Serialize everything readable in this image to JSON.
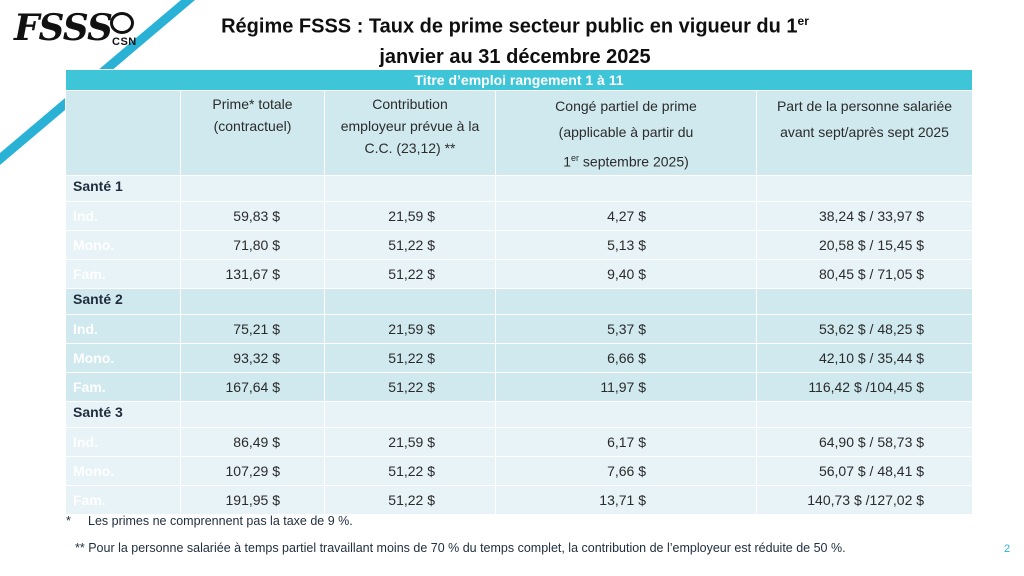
{
  "logo": {
    "text": "FSSS",
    "sub": "CSN"
  },
  "title": {
    "line1": "Régime FSSS : Taux de prime secteur public en vigueur du 1",
    "line1_sup": "er",
    "line2": "janvier au 31 décembre 2025"
  },
  "table": {
    "band": "Titre d’emploi rangement 1 à 11",
    "headers": {
      "col1_l1": "Prime* totale",
      "col1_l2": "(contractuel)",
      "col2_l1": "Contribution",
      "col2_l2": "employeur prévue à la",
      "col2_l3": "C.C. (23,12) **",
      "col3_l1": "Congé partiel de prime",
      "col3_l2": "(applicable à partir du",
      "col3_l3_pre": "1",
      "col3_l3_sup": "er",
      "col3_l3_post": " septembre 2025)",
      "col4_l1": "Part de la personne salariée",
      "col4_l2": "avant sept/après sept 2025"
    },
    "groups": [
      {
        "title": "Santé 1",
        "rows": [
          {
            "label": "Ind.",
            "total": "59,83 $",
            "employer": "21,59 $",
            "conge": "4,27 $",
            "part": "38,24 $ / 33,97 $"
          },
          {
            "label": "Mono.",
            "total": "71,80 $",
            "employer": "51,22 $",
            "conge": "5,13 $",
            "part": "20,58 $ / 15,45 $"
          },
          {
            "label": "Fam.",
            "total": "131,67 $",
            "employer": "51,22 $",
            "conge": "9,40 $",
            "part": "80,45 $ / 71,05 $"
          }
        ]
      },
      {
        "title": "Santé 2",
        "rows": [
          {
            "label": "Ind.",
            "total": "75,21 $",
            "employer": "21,59 $",
            "conge": "5,37 $",
            "part": "53,62 $  / 48,25 $"
          },
          {
            "label": "Mono.",
            "total": "93,32 $",
            "employer": "51,22 $",
            "conge": "6,66 $",
            "part": "42,10 $  / 35,44 $"
          },
          {
            "label": "Fam.",
            "total": "167,64 $",
            "employer": "51,22 $",
            "conge": "11,97 $",
            "part": "116,42 $ /104,45 $"
          }
        ]
      },
      {
        "title": "Santé 3",
        "rows": [
          {
            "label": "Ind.",
            "total": "86,49 $",
            "employer": "21,59 $",
            "conge": "6,17 $",
            "part": "64,90 $  / 58,73 $"
          },
          {
            "label": "Mono.",
            "total": "107,29 $",
            "employer": "51,22 $",
            "conge": "7,66 $",
            "part": "56,07 $  / 48,41 $"
          },
          {
            "label": "Fam.",
            "total": "191,95 $",
            "employer": "51,22 $",
            "conge": "13,71 $",
            "part": "140,73 $ /127,02 $"
          }
        ]
      }
    ]
  },
  "notes": {
    "note1_star": "*",
    "note1": "Les primes ne comprennent pas la taxe de 9 %.",
    "note2": "** Pour la personne salariée à temps partiel travaillant moins de 70 % du temps complet, la contribution de l’employeur est réduite de 50 %."
  },
  "page_number": "2",
  "colors": {
    "accent": "#3ec6d8",
    "light_row": "#e7f3f7",
    "dark_row": "#cfe9ef",
    "corner": "#2ab2d6"
  }
}
